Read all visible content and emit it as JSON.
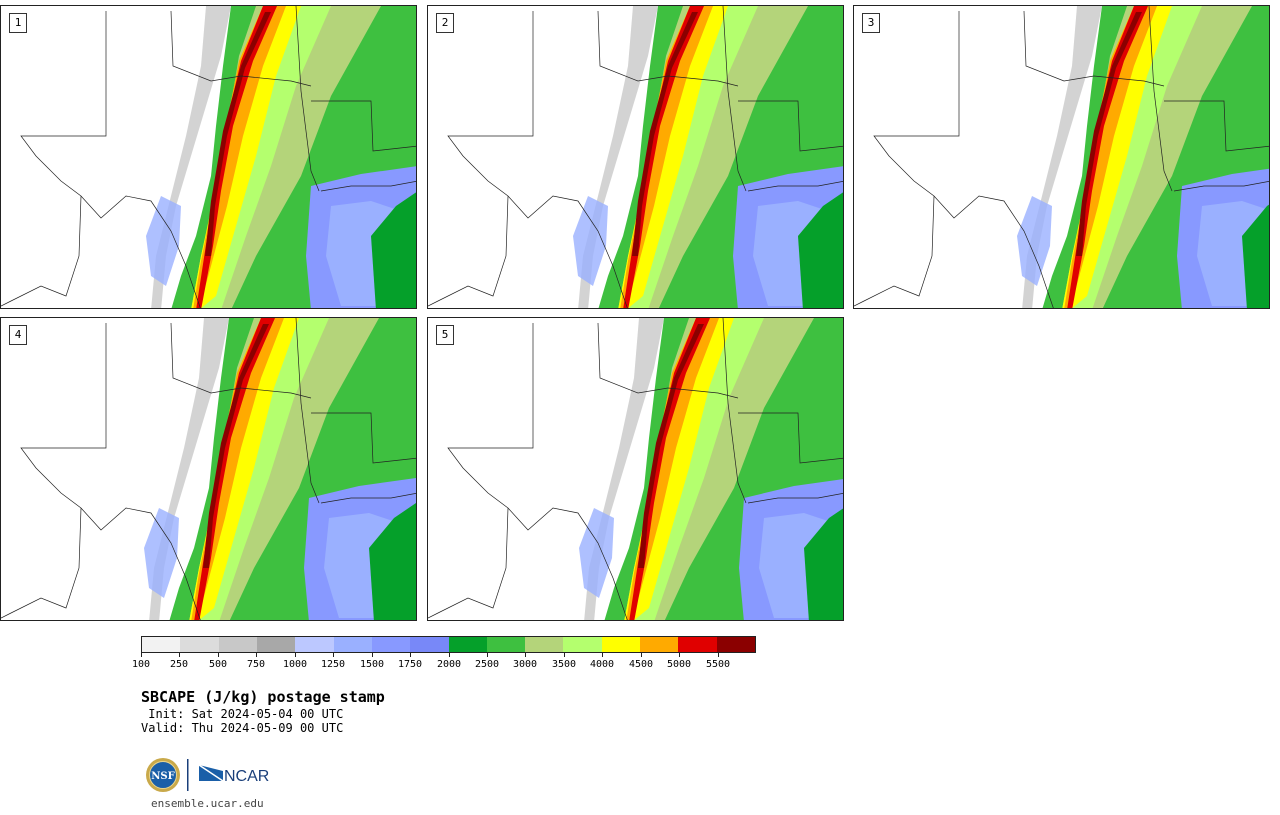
{
  "panels": [
    {
      "label": "1"
    },
    {
      "label": "2"
    },
    {
      "label": "3"
    },
    {
      "label": "4"
    },
    {
      "label": "5"
    }
  ],
  "colorbar": {
    "colors": [
      "#f2f2f2",
      "#dcdcdc",
      "#c8c8c8",
      "#a8a8a8",
      "#bcc8ff",
      "#9ab0ff",
      "#8899ff",
      "#7888f8",
      "#05a02a",
      "#3ec040",
      "#b4d47a",
      "#b4ff6e",
      "#ffff00",
      "#ffaa00",
      "#e00000",
      "#8b0000"
    ],
    "tick_labels": [
      "100",
      "250",
      "500",
      "750",
      "1000",
      "1250",
      "1500",
      "1750",
      "2000",
      "2500",
      "3000",
      "3500",
      "4000",
      "4500",
      "5000",
      "5500"
    ]
  },
  "title": "SBCAPE (J/kg) postage stamp",
  "init": " Init: Sat 2024-05-04 00 UTC",
  "valid": "Valid: Thu 2024-05-09 00 UTC",
  "logos": {
    "nsf": "NSF",
    "ncar": "NCAR"
  },
  "site": "ensemble.ucar.edu"
}
